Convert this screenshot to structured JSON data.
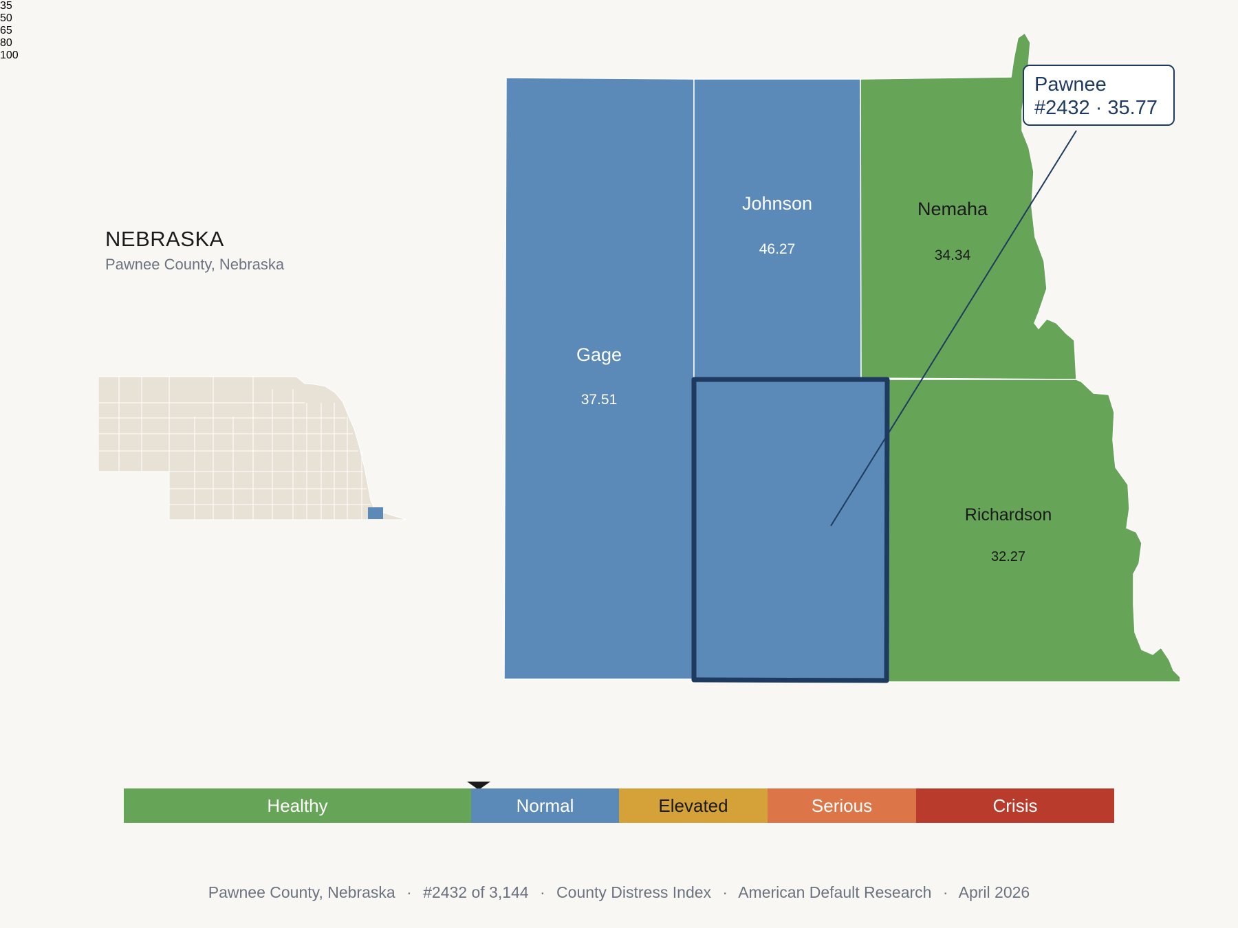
{
  "title": {
    "state": "NEBRASKA",
    "subtitle": "Pawnee County, Nebraska"
  },
  "callout": {
    "name": "Pawnee",
    "detail": "#2432 · 35.77"
  },
  "counties": {
    "gage": {
      "name": "Gage",
      "value": "37.51"
    },
    "johnson": {
      "name": "Johnson",
      "value": "46.27"
    },
    "nemaha": {
      "name": "Nemaha",
      "value": "34.34"
    },
    "richardson": {
      "name": "Richardson",
      "value": "32.27"
    },
    "pawnee": {
      "name": "Pawnee",
      "value": "35.77",
      "rank": "#2432"
    }
  },
  "legend": {
    "categories": [
      {
        "label": "Healthy",
        "from": 0,
        "to": 35,
        "color": "#66a558"
      },
      {
        "label": "Normal",
        "from": 35,
        "to": 50,
        "color": "#5b89b8"
      },
      {
        "label": "Elevated",
        "from": 50,
        "to": 65,
        "color": "#d4a238"
      },
      {
        "label": "Serious",
        "from": 65,
        "to": 80,
        "color": "#dc7649"
      },
      {
        "label": "Crisis",
        "from": 80,
        "to": 100,
        "color": "#b83b2b"
      }
    ],
    "ticks": [
      "35",
      "50",
      "65",
      "80",
      "100"
    ],
    "marker_value": 35.77
  },
  "footer": {
    "county": "Pawnee County, Nebraska",
    "rank": "#2432 of 3,144",
    "index": "County Distress Index",
    "source": "American Default Research",
    "date": "April 2026",
    "separator": "·"
  },
  "colors": {
    "healthy": "#66a558",
    "normal": "#5b89b8",
    "highlight_border": "#1e3a5f",
    "locator_fill": "#e8e1d6"
  }
}
